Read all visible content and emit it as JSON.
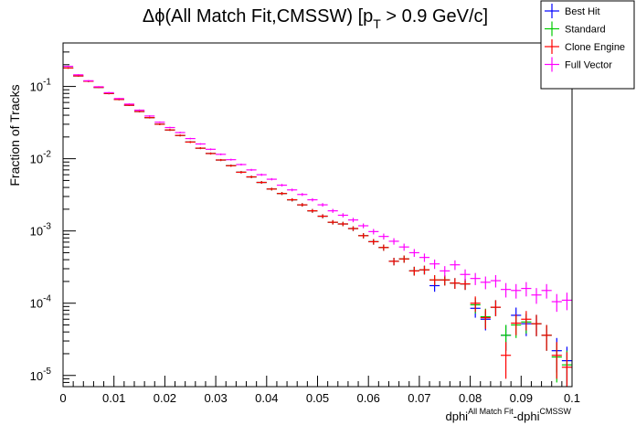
{
  "chart_data": {
    "type": "scatter",
    "title": "Δϕ(All Match Fit,CMSSW) [p_T > 0.9 GeV/c]",
    "title_parts": {
      "main": "Δϕ(All Match Fit,CMSSW) [p",
      "sub": "T",
      "tail": " > 0.9 GeV/c]"
    },
    "xlabel_parts": {
      "a": "dphi",
      "b": "All Match Fit",
      "c": "-dphi",
      "d": "CMSSW"
    },
    "ylabel": "Fraction of Tracks",
    "xlim": [
      0,
      0.1
    ],
    "ylim": [
      7e-06,
      0.4
    ],
    "yscale": "log",
    "grid": false,
    "legend_position": "top-right",
    "x_ticks": [
      "0",
      "0.01",
      "0.02",
      "0.03",
      "0.04",
      "0.05",
      "0.06",
      "0.07",
      "0.08",
      "0.09",
      "0.1"
    ],
    "y_ticks": [
      {
        "base": "10",
        "exp": "-1",
        "value": 0.1
      },
      {
        "base": "10",
        "exp": "-2",
        "value": 0.01
      },
      {
        "base": "10",
        "exp": "-3",
        "value": 0.001
      },
      {
        "base": "10",
        "exp": "-4",
        "value": 0.0001
      },
      {
        "base": "10",
        "exp": "-5",
        "value": 1e-05
      }
    ],
    "x": [
      0.001,
      0.003,
      0.005,
      0.007,
      0.009,
      0.011,
      0.013,
      0.015,
      0.017,
      0.019,
      0.021,
      0.023,
      0.025,
      0.027,
      0.029,
      0.031,
      0.033,
      0.035,
      0.037,
      0.039,
      0.041,
      0.043,
      0.045,
      0.047,
      0.049,
      0.051,
      0.053,
      0.055,
      0.057,
      0.059,
      0.061,
      0.063,
      0.065,
      0.067,
      0.069,
      0.071,
      0.073,
      0.075,
      0.077,
      0.079,
      0.081,
      0.083,
      0.085,
      0.087,
      0.089,
      0.091,
      0.093,
      0.095,
      0.097,
      0.099
    ],
    "series": [
      {
        "name": "Best Hit",
        "color": "#0000ff",
        "values": [
          0.18,
          0.14,
          0.118,
          0.097,
          0.08,
          0.066,
          0.055,
          0.045,
          0.037,
          0.03,
          0.025,
          0.021,
          0.017,
          0.014,
          0.0118,
          0.0096,
          0.008,
          0.0065,
          0.0056,
          0.0047,
          0.0038,
          0.0033,
          0.0027,
          0.0023,
          0.0019,
          0.0016,
          0.00132,
          0.00125,
          0.00108,
          0.00086,
          0.00071,
          0.00059,
          0.00038,
          0.00041,
          0.00028,
          0.00029,
          0.000175,
          0.00021,
          0.00019,
          0.000185,
          8.5e-05,
          6e-05,
          8.8e-05,
          3.6e-05,
          6.8e-05,
          5.2e-05,
          5.2e-05,
          3.6e-05,
          2.2e-05,
          1.6e-05
        ],
        "errors": [
          0.004,
          0.003,
          0.003,
          0.002,
          0.002,
          0.0015,
          0.0013,
          0.0011,
          0.0009,
          0.0008,
          0.0007,
          0.0006,
          0.0005,
          0.0004,
          0.00037,
          0.0003,
          0.00027,
          0.00023,
          0.00021,
          0.00019,
          0.00016,
          0.00015,
          0.00013,
          0.00012,
          0.00011,
          0.0001,
          9e-05,
          8.5e-05,
          8e-05,
          7e-05,
          6.3e-05,
          5.8e-05,
          4.5e-05,
          4.7e-05,
          3.9e-05,
          4e-05,
          3.1e-05,
          3.4e-05,
          3.2e-05,
          3.2e-05,
          2.2e-05,
          1.8e-05,
          2.2e-05,
          1.4e-05,
          1.9e-05,
          1.7e-05,
          1.7e-05,
          1.4e-05,
          1.1e-05,
          9e-06
        ]
      },
      {
        "name": "Standard",
        "color": "#00cc00",
        "values": [
          0.18,
          0.14,
          0.118,
          0.097,
          0.08,
          0.066,
          0.055,
          0.045,
          0.037,
          0.03,
          0.025,
          0.021,
          0.017,
          0.014,
          0.0118,
          0.0096,
          0.008,
          0.0065,
          0.0056,
          0.0047,
          0.0038,
          0.0033,
          0.0027,
          0.0023,
          0.0019,
          0.0016,
          0.00132,
          0.00125,
          0.00108,
          0.00086,
          0.00071,
          0.00059,
          0.00038,
          0.00041,
          0.00028,
          0.00029,
          0.00021,
          0.00021,
          0.00019,
          0.000185,
          9.5e-05,
          6.5e-05,
          8.8e-05,
          3.6e-05,
          5e-05,
          5.5e-05,
          5.2e-05,
          3.6e-05,
          1.8e-05,
          1.4e-05
        ],
        "errors": [
          0.004,
          0.003,
          0.003,
          0.002,
          0.002,
          0.0015,
          0.0013,
          0.0011,
          0.0009,
          0.0008,
          0.0007,
          0.0006,
          0.0005,
          0.0004,
          0.00037,
          0.0003,
          0.00027,
          0.00023,
          0.00021,
          0.00019,
          0.00016,
          0.00015,
          0.00013,
          0.00012,
          0.00011,
          0.0001,
          9e-05,
          8.5e-05,
          8e-05,
          7e-05,
          6.3e-05,
          5.8e-05,
          4.5e-05,
          4.7e-05,
          3.9e-05,
          4e-05,
          3.4e-05,
          3.4e-05,
          3.2e-05,
          3.2e-05,
          2.3e-05,
          1.9e-05,
          2.2e-05,
          1.4e-05,
          1.7e-05,
          1.7e-05,
          1.7e-05,
          1.4e-05,
          1e-05,
          8e-06
        ]
      },
      {
        "name": "Clone Engine",
        "color": "#ff0000",
        "values": [
          0.18,
          0.14,
          0.118,
          0.097,
          0.08,
          0.066,
          0.055,
          0.045,
          0.037,
          0.03,
          0.025,
          0.021,
          0.017,
          0.014,
          0.0118,
          0.0096,
          0.008,
          0.0065,
          0.0056,
          0.0047,
          0.0038,
          0.0033,
          0.0027,
          0.0023,
          0.0019,
          0.0016,
          0.00132,
          0.00125,
          0.00108,
          0.00086,
          0.00071,
          0.00059,
          0.00038,
          0.00041,
          0.00028,
          0.00029,
          0.00021,
          0.00021,
          0.00019,
          0.000185,
          0.0001,
          6.3e-05,
          8.8e-05,
          1.9e-05,
          5.3e-05,
          6e-05,
          5.2e-05,
          3.6e-05,
          1.9e-05,
          1.3e-05
        ],
        "errors": [
          0.004,
          0.003,
          0.003,
          0.002,
          0.002,
          0.0015,
          0.0013,
          0.0011,
          0.0009,
          0.0008,
          0.0007,
          0.0006,
          0.0005,
          0.0004,
          0.00037,
          0.0003,
          0.00027,
          0.00023,
          0.00021,
          0.00019,
          0.00016,
          0.00015,
          0.00013,
          0.00012,
          0.00011,
          0.0001,
          9e-05,
          8.5e-05,
          8e-05,
          7e-05,
          6.3e-05,
          5.8e-05,
          4.5e-05,
          4.7e-05,
          3.9e-05,
          4e-05,
          3.4e-05,
          3.4e-05,
          3.2e-05,
          3.2e-05,
          2.4e-05,
          1.9e-05,
          2.2e-05,
          1e-05,
          1.7e-05,
          1.8e-05,
          1.7e-05,
          1.4e-05,
          1e-05,
          8e-06
        ]
      },
      {
        "name": "Full Vector",
        "color": "#ff00ff",
        "values": [
          0.19,
          0.145,
          0.12,
          0.099,
          0.082,
          0.068,
          0.057,
          0.047,
          0.039,
          0.032,
          0.027,
          0.023,
          0.019,
          0.016,
          0.0135,
          0.0115,
          0.0097,
          0.0083,
          0.007,
          0.006,
          0.0052,
          0.0043,
          0.0037,
          0.0032,
          0.0027,
          0.0023,
          0.0019,
          0.00165,
          0.00142,
          0.00118,
          0.00098,
          0.00084,
          0.00072,
          0.0006,
          0.0005,
          0.00043,
          0.00035,
          0.00028,
          0.00034,
          0.00025,
          0.00022,
          0.000195,
          0.000205,
          0.000155,
          0.00015,
          0.00016,
          0.00013,
          0.00015,
          0.000105,
          0.00011
        ],
        "errors": [
          0.004,
          0.003,
          0.003,
          0.002,
          0.002,
          0.0015,
          0.0013,
          0.0011,
          0.0009,
          0.0008,
          0.0007,
          0.0006,
          0.0005,
          0.0004,
          0.0004,
          0.00033,
          0.0003,
          0.00026,
          0.00024,
          0.00022,
          0.00019,
          0.00018,
          0.00016,
          0.00015,
          0.00014,
          0.00013,
          0.00012,
          0.00011,
          0.0001,
          9e-05,
          8.5e-05,
          8e-05,
          7.4e-05,
          6.8e-05,
          6.2e-05,
          5.7e-05,
          5.2e-05,
          4.6e-05,
          5.2e-05,
          4.4e-05,
          4.2e-05,
          3.9e-05,
          4e-05,
          3.5e-05,
          3.4e-05,
          3.6e-05,
          3.2e-05,
          3.4e-05,
          2.9e-05,
          3e-05
        ]
      }
    ]
  }
}
